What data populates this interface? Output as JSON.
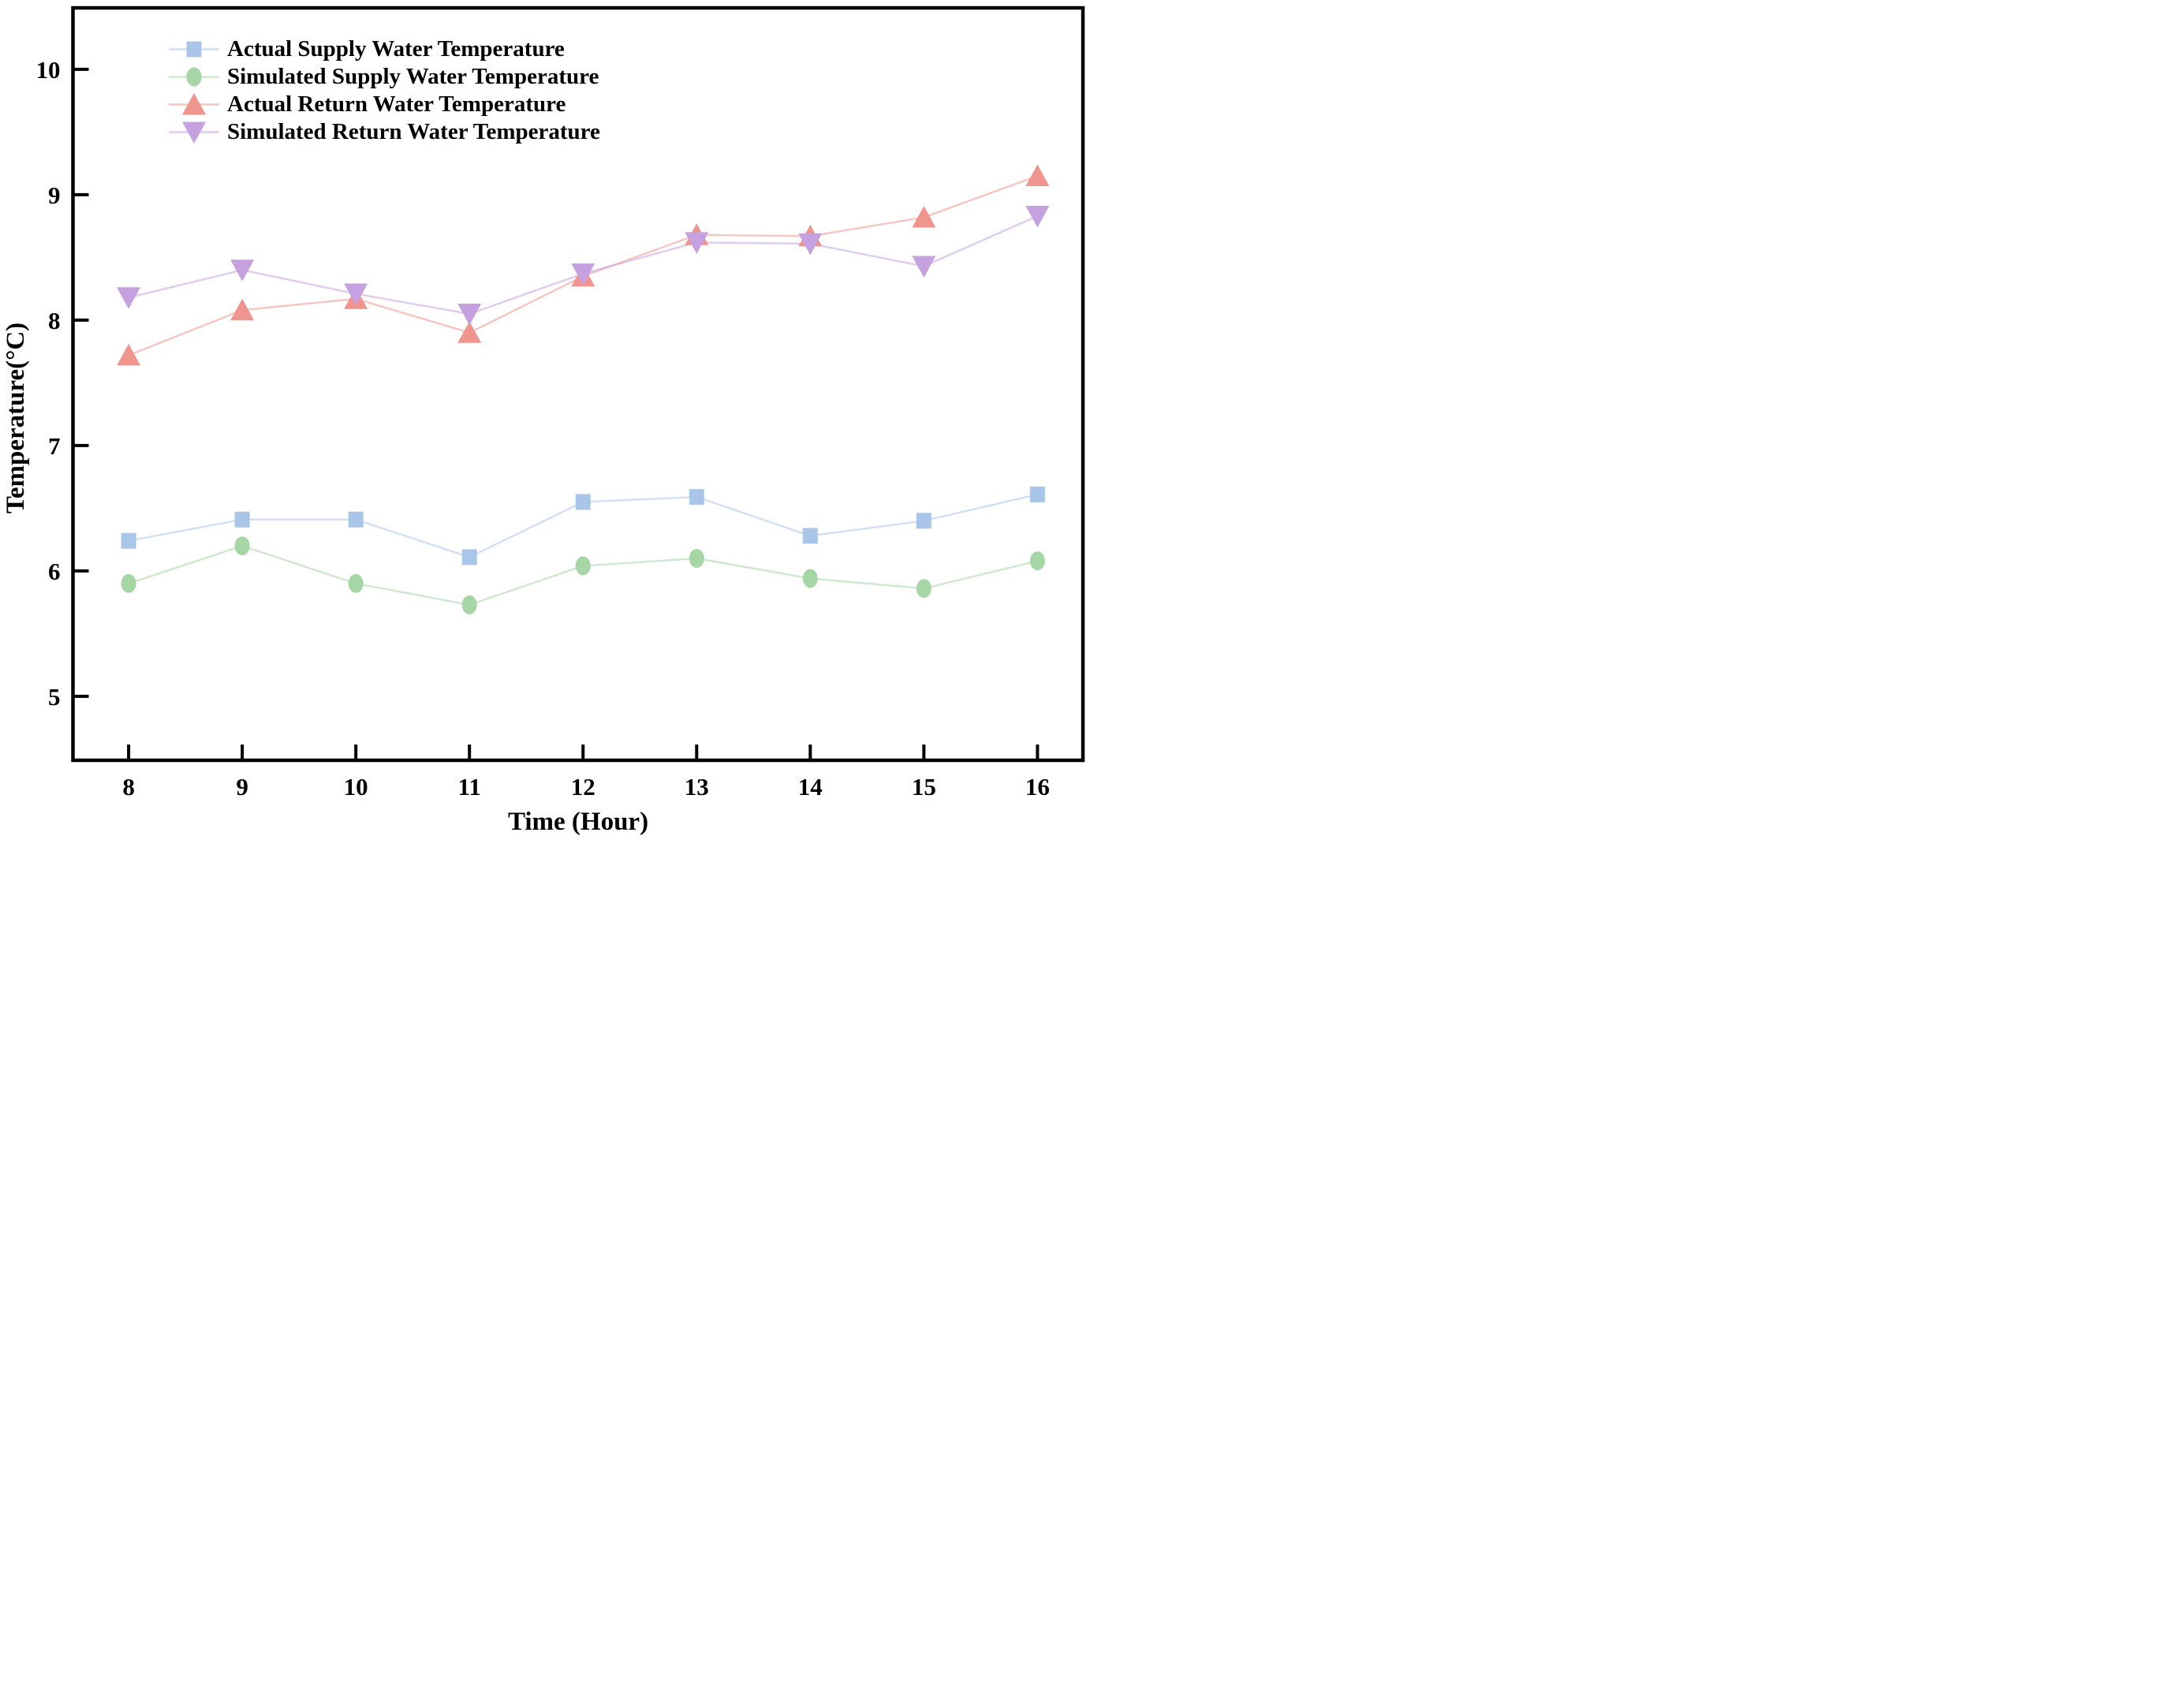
{
  "chart_data": {
    "type": "line",
    "x": [
      8,
      9,
      10,
      11,
      12,
      13,
      14,
      15,
      16
    ],
    "series": [
      {
        "name": "Actual Supply Water Temperature",
        "marker": "square",
        "color": "#a9c5e8",
        "values": [
          6.24,
          6.41,
          6.41,
          6.11,
          6.55,
          6.59,
          6.28,
          6.4,
          6.61
        ]
      },
      {
        "name": "Simulated Supply Water Temperature",
        "marker": "circle",
        "color": "#a6d5a6",
        "values": [
          5.9,
          6.2,
          5.9,
          5.73,
          6.04,
          6.1,
          5.94,
          5.86,
          6.08
        ]
      },
      {
        "name": "Actual Return Water Temperature",
        "marker": "triangle-up",
        "color": "#ef958d",
        "values": [
          7.72,
          8.08,
          8.17,
          7.9,
          8.35,
          8.68,
          8.67,
          8.82,
          9.15
        ]
      },
      {
        "name": "Simulated Return Water Temperature",
        "marker": "triangle-down",
        "color": "#c5a1e0",
        "values": [
          8.18,
          8.4,
          8.21,
          8.05,
          8.37,
          8.62,
          8.61,
          8.43,
          8.83
        ]
      }
    ],
    "title": "",
    "xlabel": "Time (Hour)",
    "ylabel": "Temperature(°C)",
    "x_ticks": [
      8,
      9,
      10,
      11,
      12,
      13,
      14,
      15,
      16
    ],
    "y_ticks": [
      5,
      6,
      7,
      8,
      9,
      10
    ],
    "xlim": [
      7.51,
      16.4
    ],
    "ylim": [
      4.49,
      10.49
    ],
    "grid": false,
    "legend_position": "top-left",
    "line_opacity": 0.55,
    "frame_color": "#000000"
  }
}
